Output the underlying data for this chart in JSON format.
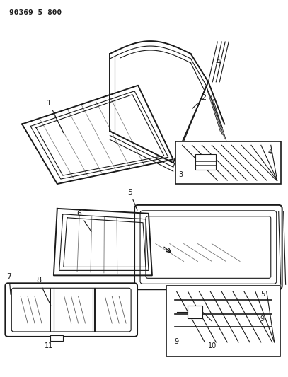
{
  "title_text": "90369 5 800",
  "bg_color": "#ffffff",
  "line_color": "#1a1a1a",
  "fig_width": 4.07,
  "fig_height": 5.33,
  "dpi": 100
}
